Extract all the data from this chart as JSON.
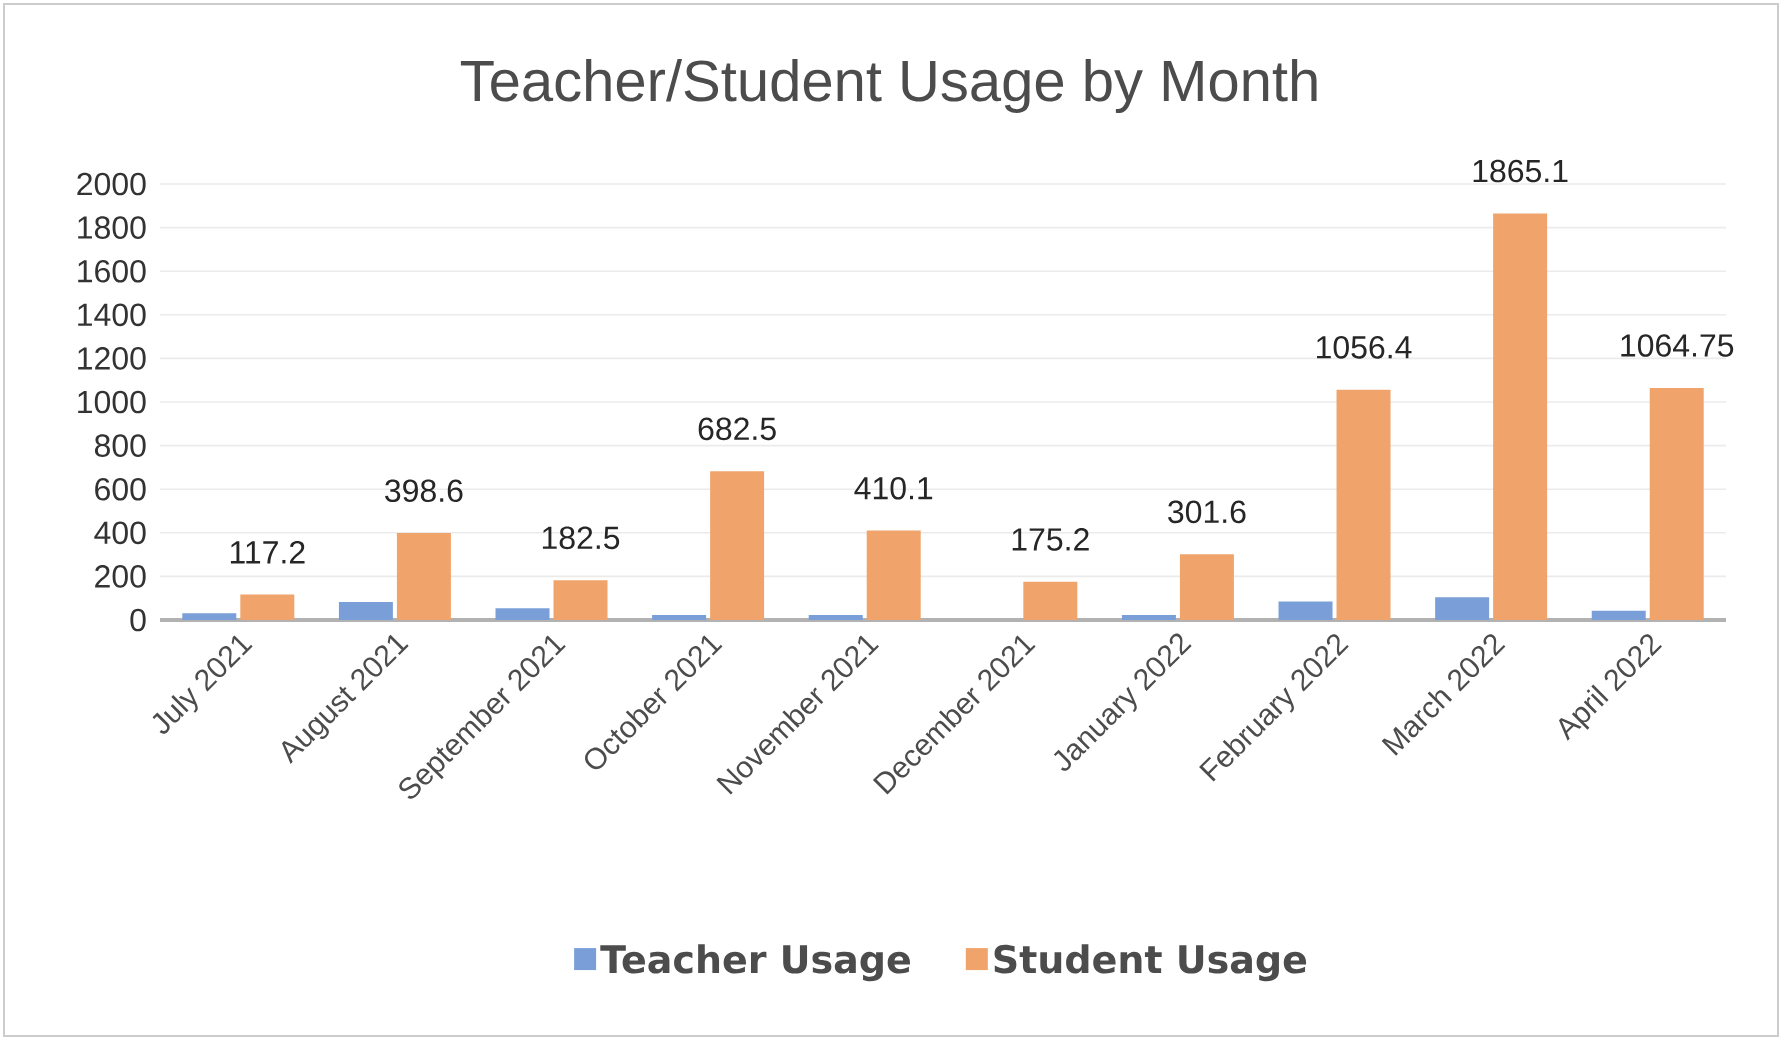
{
  "chart_data": {
    "type": "bar",
    "title": "Teacher/Student Usage by Month",
    "categories": [
      "July 2021",
      "August 2021",
      "September 2021",
      "October 2021",
      "November 2021",
      "December 2021",
      "January 2022",
      "February 2022",
      "March 2022",
      "April 2022"
    ],
    "series": [
      {
        "name": "Teacher Usage",
        "color": "#7a9fd8",
        "values": [
          31,
          82,
          54,
          23,
          23,
          null,
          23,
          85,
          104,
          42
        ]
      },
      {
        "name": "Student Usage",
        "color": "#f0a46c",
        "values": [
          117.2,
          398.6,
          182.5,
          682.5,
          410.1,
          175.2,
          301.6,
          1056.4,
          1865.1,
          1064.75
        ],
        "value_labels": [
          "117.2",
          "398.6",
          "182.5",
          "682.5",
          "410.1",
          "175.2",
          "301.6",
          "1056.4",
          "1865.1",
          "1064.75"
        ]
      }
    ],
    "ylim": [
      0,
      2000
    ],
    "yticks": [
      0,
      200,
      400,
      600,
      800,
      1000,
      1200,
      1400,
      1600,
      1800,
      2000
    ],
    "grid": "y",
    "legend": "bottom"
  }
}
